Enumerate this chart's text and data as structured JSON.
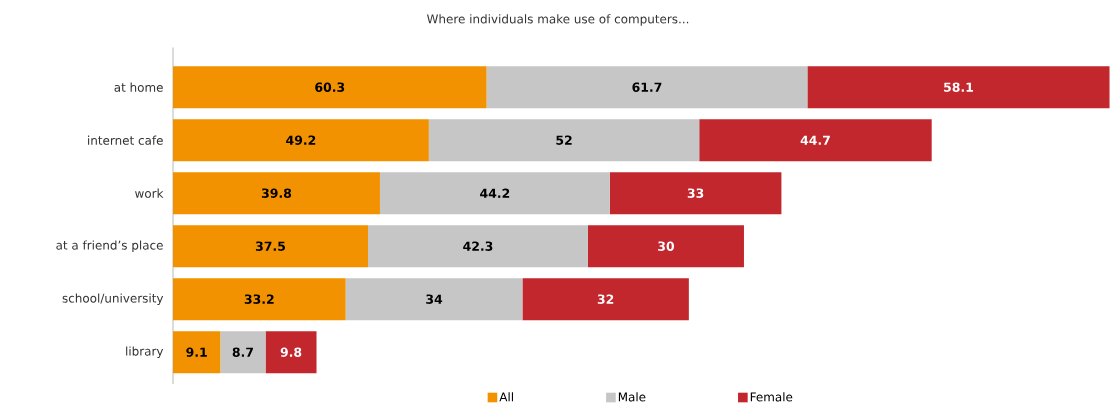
{
  "chart_data": {
    "type": "bar",
    "orientation": "horizontal",
    "stacked": true,
    "title": "Where individuals make use of computers...",
    "categories": [
      "at home",
      "internet cafe",
      "work",
      "at a friend’s place",
      "school/university",
      "library"
    ],
    "series": [
      {
        "name": "All",
        "color": "#f39200",
        "values": [
          60.3,
          49.2,
          39.8,
          37.5,
          33.2,
          9.1
        ]
      },
      {
        "name": "Male",
        "color": "#c6c6c6",
        "values": [
          61.7,
          52,
          44.2,
          42.3,
          34,
          8.7
        ]
      },
      {
        "name": "Female",
        "color": "#c1272d",
        "values": [
          58.1,
          44.7,
          33,
          30,
          32,
          9.8
        ]
      }
    ],
    "data_labels": true,
    "legend": "bottom"
  }
}
